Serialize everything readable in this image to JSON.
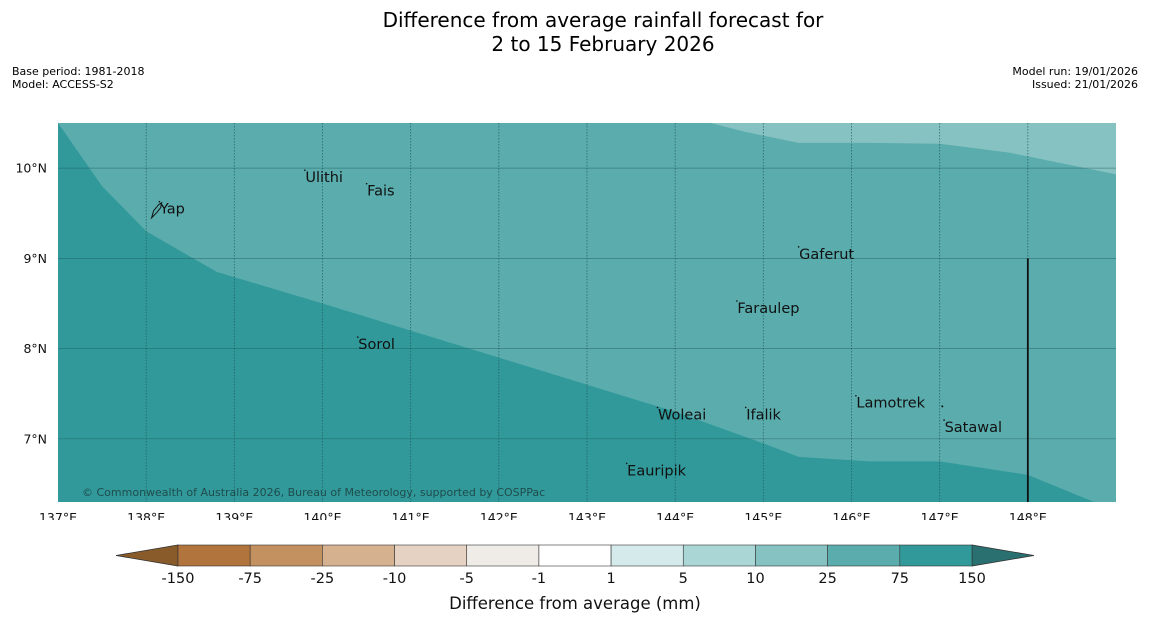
{
  "title": {
    "line1": "Difference from average rainfall forecast for",
    "line2": "2 to 15 February 2026"
  },
  "meta": {
    "base_period": "Base period: 1981-2018",
    "model": "Model: ACCESS-S2",
    "model_run": "Model run: 19/01/2026",
    "issued": "Issued: 21/01/2026"
  },
  "map": {
    "lon_range": [
      137,
      149
    ],
    "lat_range": [
      6.3,
      10.5
    ],
    "lon_ticks": [
      {
        "value": 137,
        "label": "137°E"
      },
      {
        "value": 138,
        "label": "138°E"
      },
      {
        "value": 139,
        "label": "139°E"
      },
      {
        "value": 140,
        "label": "140°E"
      },
      {
        "value": 141,
        "label": "141°E"
      },
      {
        "value": 142,
        "label": "142°E"
      },
      {
        "value": 143,
        "label": "143°E"
      },
      {
        "value": 144,
        "label": "144°E"
      },
      {
        "value": 145,
        "label": "145°E"
      },
      {
        "value": 146,
        "label": "146°E"
      },
      {
        "value": 147,
        "label": "147°E"
      },
      {
        "value": 148,
        "label": "148°E"
      }
    ],
    "lat_ticks": [
      {
        "value": 10,
        "label": "10°N"
      },
      {
        "value": 9,
        "label": "9°N"
      },
      {
        "value": 8,
        "label": "8°N"
      },
      {
        "value": 7,
        "label": "7°N"
      }
    ],
    "places": [
      {
        "name": "Ulithi",
        "lon": 139.8,
        "lat": 9.9
      },
      {
        "name": "Fais",
        "lon": 140.5,
        "lat": 9.75
      },
      {
        "name": "Yap",
        "lon": 138.15,
        "lat": 9.55
      },
      {
        "name": "Gaferut",
        "lon": 145.4,
        "lat": 9.05
      },
      {
        "name": "Faraulep",
        "lon": 144.7,
        "lat": 8.45
      },
      {
        "name": "Sorol",
        "lon": 140.4,
        "lat": 8.05
      },
      {
        "name": "Lamotrek",
        "lon": 146.05,
        "lat": 7.4
      },
      {
        "name": "Woleai",
        "lon": 143.8,
        "lat": 7.27
      },
      {
        "name": "Ifalik",
        "lon": 144.8,
        "lat": 7.27
      },
      {
        "name": "Satawal",
        "lon": 147.05,
        "lat": 7.13
      },
      {
        "name": "Eauripik",
        "lon": 143.45,
        "lat": 6.65
      }
    ],
    "zones": [
      {
        "category": "75 to 150",
        "color": "#31999a",
        "boundary": [
          [
            137,
            10.5
          ],
          [
            137.5,
            9.8
          ],
          [
            138,
            9.3
          ],
          [
            138.8,
            8.85
          ],
          [
            140,
            8.5
          ],
          [
            142,
            7.9
          ],
          [
            143,
            7.6
          ],
          [
            144,
            7.3
          ],
          [
            145,
            6.95
          ],
          [
            145.4,
            6.8
          ],
          [
            146.2,
            6.75
          ],
          [
            147,
            6.75
          ],
          [
            148,
            6.6
          ],
          [
            148.75,
            6.3
          ]
        ]
      },
      {
        "category": "25 to 75",
        "color": "#5aacad",
        "upper": [
          [
            144.4,
            10.5
          ],
          [
            144.8,
            10.4
          ],
          [
            145.4,
            10.28
          ],
          [
            146.2,
            10.28
          ],
          [
            147,
            10.27
          ],
          [
            147.8,
            10.17
          ],
          [
            148.5,
            10.03
          ],
          [
            149,
            9.93
          ]
        ]
      },
      {
        "category": "10 to 25",
        "color": "#86c2c1"
      }
    ],
    "boundary_line": {
      "lon": 148,
      "lat_from": 9,
      "lat_to": 6.3
    }
  },
  "copyright": "© Commonwealth of Australia 2026, Bureau of Meteorology, supported by COSPPac",
  "colorbar": {
    "label": "Difference from average (mm)",
    "under_color": "#8a5b2a",
    "over_color": "#2a7070",
    "colors": [
      "#b1743c",
      "#c3915f",
      "#d6b190",
      "#e5d2c2",
      "#efebe6",
      "#ffffff",
      "#d5eaea",
      "#abd6d6",
      "#86c2c1",
      "#5aacad",
      "#31999a"
    ],
    "tick_labels": [
      "-150",
      "-75",
      "-25",
      "-10",
      "-5",
      "-1",
      "1",
      "5",
      "10",
      "25",
      "75",
      "150"
    ]
  }
}
